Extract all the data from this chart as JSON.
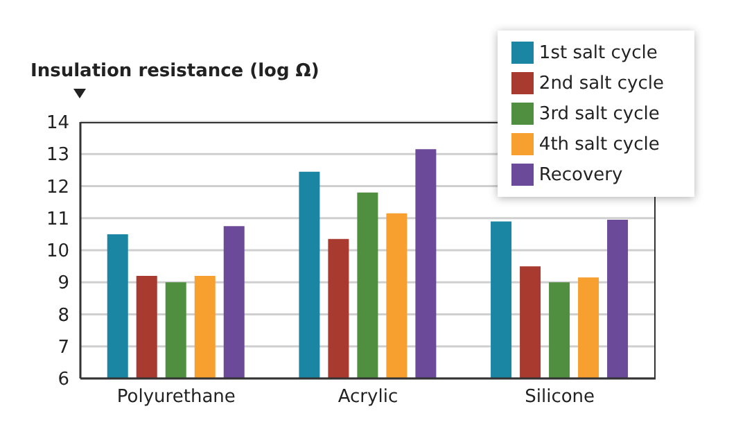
{
  "chart_data": {
    "type": "bar",
    "ylabel": "Insulation resistance (log Ω)",
    "categories": [
      "Polyurethane",
      "Acrylic",
      "Silicone"
    ],
    "series": [
      {
        "name": "1st salt cycle",
        "color": "#1b86a4",
        "values": [
          10.5,
          12.45,
          10.9
        ]
      },
      {
        "name": "2nd salt cycle",
        "color": "#a93a2f",
        "values": [
          9.2,
          10.35,
          9.5
        ]
      },
      {
        "name": "3rd salt cycle",
        "color": "#4f8f3f",
        "values": [
          9.0,
          11.8,
          9.0
        ]
      },
      {
        "name": "4th salt cycle",
        "color": "#f7a030",
        "values": [
          9.2,
          11.15,
          9.15
        ]
      },
      {
        "name": "Recovery",
        "color": "#6b4a9a",
        "values": [
          10.75,
          13.15,
          10.95
        ]
      }
    ],
    "ylim": [
      6,
      14
    ],
    "yticks": [
      6,
      7,
      8,
      9,
      10,
      11,
      12,
      13,
      14
    ],
    "grid": "y",
    "legend": "top right"
  }
}
